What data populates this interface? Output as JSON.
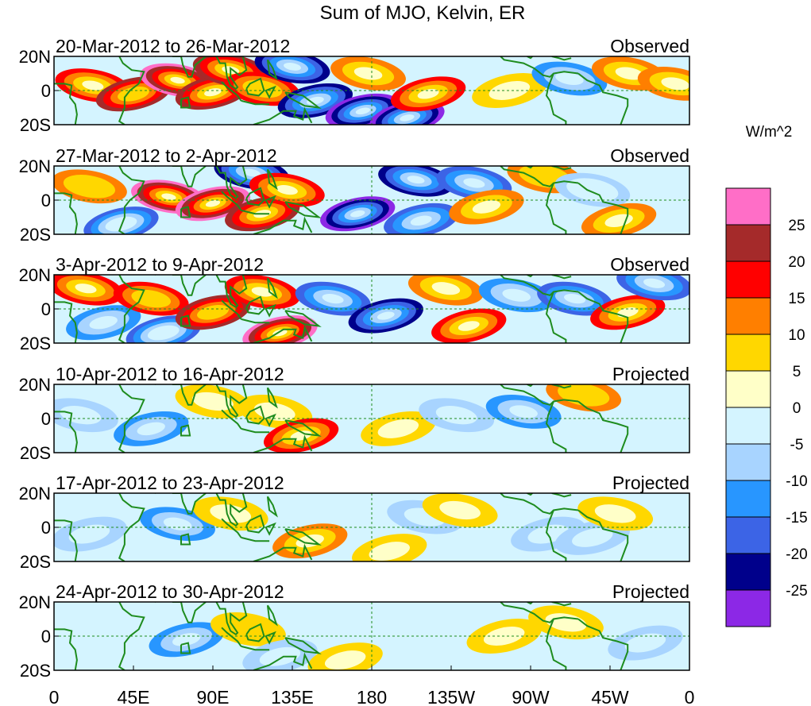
{
  "chart_data": {
    "type": "heatmap",
    "title": "Sum of MJO, Kelvin, ER",
    "units_label": "W/m^2",
    "x_ticks": [
      "0",
      "45E",
      "90E",
      "135E",
      "180",
      "135W",
      "90W",
      "45W",
      "0"
    ],
    "x_tick_lons": [
      0,
      45,
      90,
      135,
      180,
      225,
      270,
      315,
      360
    ],
    "x_range_lon": [
      0,
      360
    ],
    "y_ticks": [
      "20N",
      "0",
      "20S"
    ],
    "y_tick_lats": [
      20,
      0,
      -20
    ],
    "y_range_lat": [
      -20,
      20
    ],
    "colorbar": {
      "labels": [
        "25",
        "20",
        "15",
        "10",
        "5",
        "0",
        "-5",
        "-10",
        "-15",
        "-20",
        "-25"
      ],
      "levels": [
        25,
        20,
        15,
        10,
        5,
        0,
        -5,
        -10,
        -15,
        -20,
        -25
      ],
      "colors": [
        "#ff6ec7",
        "#a52a2a",
        "#ff0000",
        "#ff7f00",
        "#ffd700",
        "#ffffc8",
        "#d4f4ff",
        "#a8d4ff",
        "#2896ff",
        "#3c64e6",
        "#00008b",
        "#8c28e6"
      ]
    },
    "panels": [
      {
        "period": "20-Mar-2012 to 26-Mar-2012",
        "type": "Observed",
        "features": [
          {
            "lon": 22,
            "lat": 3,
            "value": 18
          },
          {
            "lon": 45,
            "lat": -2,
            "value": 20
          },
          {
            "lon": 70,
            "lat": 6,
            "value": 28
          },
          {
            "lon": 90,
            "lat": -1,
            "value": 24
          },
          {
            "lon": 100,
            "lat": 12,
            "value": 22
          },
          {
            "lon": 118,
            "lat": 1,
            "value": 15
          },
          {
            "lon": 135,
            "lat": 14,
            "value": -22
          },
          {
            "lon": 148,
            "lat": -6,
            "value": -24
          },
          {
            "lon": 175,
            "lat": -12,
            "value": -28
          },
          {
            "lon": 200,
            "lat": -16,
            "value": -26
          },
          {
            "lon": 178,
            "lat": 10,
            "value": 12
          },
          {
            "lon": 212,
            "lat": -2,
            "value": 16
          },
          {
            "lon": 258,
            "lat": 0,
            "value": 8
          },
          {
            "lon": 292,
            "lat": 7,
            "value": -12
          },
          {
            "lon": 326,
            "lat": 10,
            "value": 14
          },
          {
            "lon": 352,
            "lat": 4,
            "value": 12
          }
        ]
      },
      {
        "period": "27-Mar-2012 to 2-Apr-2012",
        "type": "Observed",
        "features": [
          {
            "lon": 20,
            "lat": 8,
            "value": 10
          },
          {
            "lon": 38,
            "lat": -14,
            "value": -20
          },
          {
            "lon": 65,
            "lat": 2,
            "value": 26
          },
          {
            "lon": 90,
            "lat": -2,
            "value": 27
          },
          {
            "lon": 118,
            "lat": -8,
            "value": 24
          },
          {
            "lon": 112,
            "lat": 16,
            "value": -24
          },
          {
            "lon": 132,
            "lat": 6,
            "value": 16
          },
          {
            "lon": 172,
            "lat": -8,
            "value": -28
          },
          {
            "lon": 205,
            "lat": 12,
            "value": -22
          },
          {
            "lon": 208,
            "lat": -12,
            "value": -18
          },
          {
            "lon": 238,
            "lat": 10,
            "value": -16
          },
          {
            "lon": 245,
            "lat": -4,
            "value": 12
          },
          {
            "lon": 278,
            "lat": 14,
            "value": 10
          },
          {
            "lon": 305,
            "lat": 6,
            "value": -10
          },
          {
            "lon": 320,
            "lat": -12,
            "value": 13
          }
        ]
      },
      {
        "period": "3-Apr-2012 to 9-Apr-2012",
        "type": "Observed",
        "features": [
          {
            "lon": 18,
            "lat": 12,
            "value": 16
          },
          {
            "lon": 28,
            "lat": -8,
            "value": -12
          },
          {
            "lon": 55,
            "lat": 6,
            "value": 15
          },
          {
            "lon": 62,
            "lat": -14,
            "value": -20
          },
          {
            "lon": 90,
            "lat": -2,
            "value": 20
          },
          {
            "lon": 118,
            "lat": 10,
            "value": 18
          },
          {
            "lon": 128,
            "lat": -14,
            "value": 27
          },
          {
            "lon": 158,
            "lat": 6,
            "value": -18
          },
          {
            "lon": 188,
            "lat": -4,
            "value": -22
          },
          {
            "lon": 222,
            "lat": 12,
            "value": 14
          },
          {
            "lon": 235,
            "lat": -10,
            "value": 16
          },
          {
            "lon": 262,
            "lat": 8,
            "value": -14
          },
          {
            "lon": 295,
            "lat": 6,
            "value": -18
          },
          {
            "lon": 325,
            "lat": -2,
            "value": 17
          },
          {
            "lon": 340,
            "lat": 15,
            "value": -16
          }
        ]
      },
      {
        "period": "10-Apr-2012 to 16-Apr-2012",
        "type": "Projected",
        "features": [
          {
            "lon": 15,
            "lat": 2,
            "value": -6
          },
          {
            "lon": 55,
            "lat": -6,
            "value": -12
          },
          {
            "lon": 90,
            "lat": 10,
            "value": 7
          },
          {
            "lon": 125,
            "lat": 4,
            "value": 9
          },
          {
            "lon": 140,
            "lat": -10,
            "value": 18
          },
          {
            "lon": 195,
            "lat": -6,
            "value": 6
          },
          {
            "lon": 228,
            "lat": 2,
            "value": -8
          },
          {
            "lon": 266,
            "lat": 4,
            "value": -12
          },
          {
            "lon": 300,
            "lat": 14,
            "value": 10
          },
          {
            "lon": 330,
            "lat": -6,
            "value": -5
          }
        ]
      },
      {
        "period": "17-Apr-2012 to 23-Apr-2012",
        "type": "Projected",
        "features": [
          {
            "lon": 20,
            "lat": -4,
            "value": -6
          },
          {
            "lon": 70,
            "lat": 2,
            "value": -14
          },
          {
            "lon": 100,
            "lat": 8,
            "value": 6
          },
          {
            "lon": 145,
            "lat": -8,
            "value": 11
          },
          {
            "lon": 190,
            "lat": -14,
            "value": 9
          },
          {
            "lon": 210,
            "lat": 6,
            "value": -6
          },
          {
            "lon": 230,
            "lat": 10,
            "value": 7
          },
          {
            "lon": 280,
            "lat": -4,
            "value": -8
          },
          {
            "lon": 305,
            "lat": -6,
            "value": -9
          },
          {
            "lon": 318,
            "lat": 8,
            "value": 6
          }
        ]
      },
      {
        "period": "24-Apr-2012 to 30-Apr-2012",
        "type": "Projected",
        "features": [
          {
            "lon": 30,
            "lat": 6,
            "value": -4
          },
          {
            "lon": 75,
            "lat": -2,
            "value": -12
          },
          {
            "lon": 110,
            "lat": 4,
            "value": 5
          },
          {
            "lon": 128,
            "lat": -12,
            "value": -8
          },
          {
            "lon": 165,
            "lat": -14,
            "value": 6
          },
          {
            "lon": 215,
            "lat": 6,
            "value": -4
          },
          {
            "lon": 255,
            "lat": 0,
            "value": 7
          },
          {
            "lon": 290,
            "lat": 8,
            "value": 8
          },
          {
            "lon": 335,
            "lat": -4,
            "value": -6
          }
        ]
      }
    ]
  }
}
